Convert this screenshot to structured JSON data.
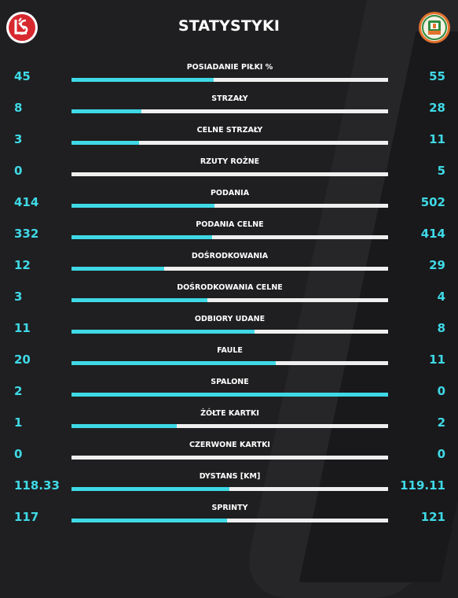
{
  "header": {
    "title": "STATYSTYKI",
    "home_logo": "lks-lodz-crest",
    "away_logo": "zaglebie-lubin-crest"
  },
  "colors": {
    "accent": "#3fd9e6",
    "track": "#efefef",
    "background": "#1f1f21"
  },
  "stats": [
    {
      "label": "POSIADANIE PIŁKI %",
      "home": "45",
      "away": "55",
      "fill": 0.45
    },
    {
      "label": "STRZAŁY",
      "home": "8",
      "away": "28",
      "fill": 0.22
    },
    {
      "label": "CELNE STRZAŁY",
      "home": "3",
      "away": "11",
      "fill": 0.214
    },
    {
      "label": "RZUTY ROŻNE",
      "home": "0",
      "away": "5",
      "fill": 0
    },
    {
      "label": "PODANIA",
      "home": "414",
      "away": "502",
      "fill": 0.452
    },
    {
      "label": "PODANIA CELNE",
      "home": "332",
      "away": "414",
      "fill": 0.445
    },
    {
      "label": "DOŚRODKOWANIA",
      "home": "12",
      "away": "29",
      "fill": 0.293
    },
    {
      "label": "DOŚRODKOWANIA CELNE",
      "home": "3",
      "away": "4",
      "fill": 0.429
    },
    {
      "label": "ODBIORY UDANE",
      "home": "11",
      "away": "8",
      "fill": 0.579
    },
    {
      "label": "FAULE",
      "home": "20",
      "away": "11",
      "fill": 0.645
    },
    {
      "label": "SPALONE",
      "home": "2",
      "away": "0",
      "fill": 1
    },
    {
      "label": "ŻÓŁTE KARTKI",
      "home": "1",
      "away": "2",
      "fill": 0.333
    },
    {
      "label": "CZERWONE KARTKI",
      "home": "0",
      "away": "0",
      "fill": 0
    },
    {
      "label": "DYSTANS [KM]",
      "home": "118.33",
      "away": "119.11",
      "fill": 0.498
    },
    {
      "label": "SPRINTY",
      "home": "117",
      "away": "121",
      "fill": 0.492
    }
  ]
}
